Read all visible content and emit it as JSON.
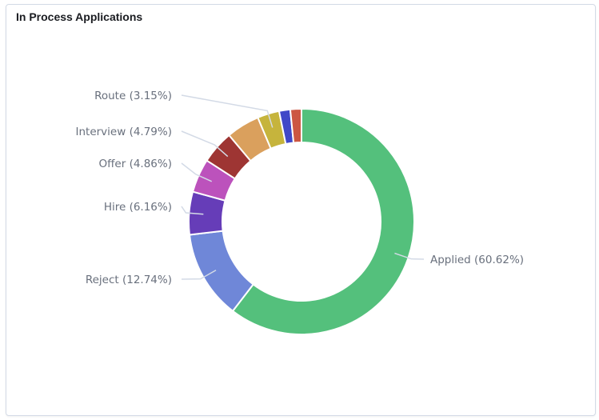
{
  "panel": {
    "title": "In Process Applications"
  },
  "chart_data": {
    "type": "pie",
    "donut": true,
    "title": "In Process Applications",
    "slices": [
      {
        "label": "Applied (60.62%)",
        "value": 60.62,
        "color": "#54c07c"
      },
      {
        "label": "Reject (12.74%)",
        "value": 12.74,
        "color": "#6f87d8"
      },
      {
        "label": "Hire (6.16%)",
        "value": 6.16,
        "color": "#663db8"
      },
      {
        "label": "Offer (4.86%)",
        "value": 4.86,
        "color": "#bc52bc"
      },
      {
        "label": "Interview (4.79%)",
        "value": 4.79,
        "color": "#9e3533"
      },
      {
        "label": "",
        "value": 4.79,
        "color": "#daa05d"
      },
      {
        "label": "Route (3.15%)",
        "value": 3.15,
        "color": "#c6b43c"
      },
      {
        "label": "",
        "value": 1.6,
        "color": "#4048c8"
      },
      {
        "label": "",
        "value": 1.6,
        "color": "#cc5642"
      }
    ]
  }
}
